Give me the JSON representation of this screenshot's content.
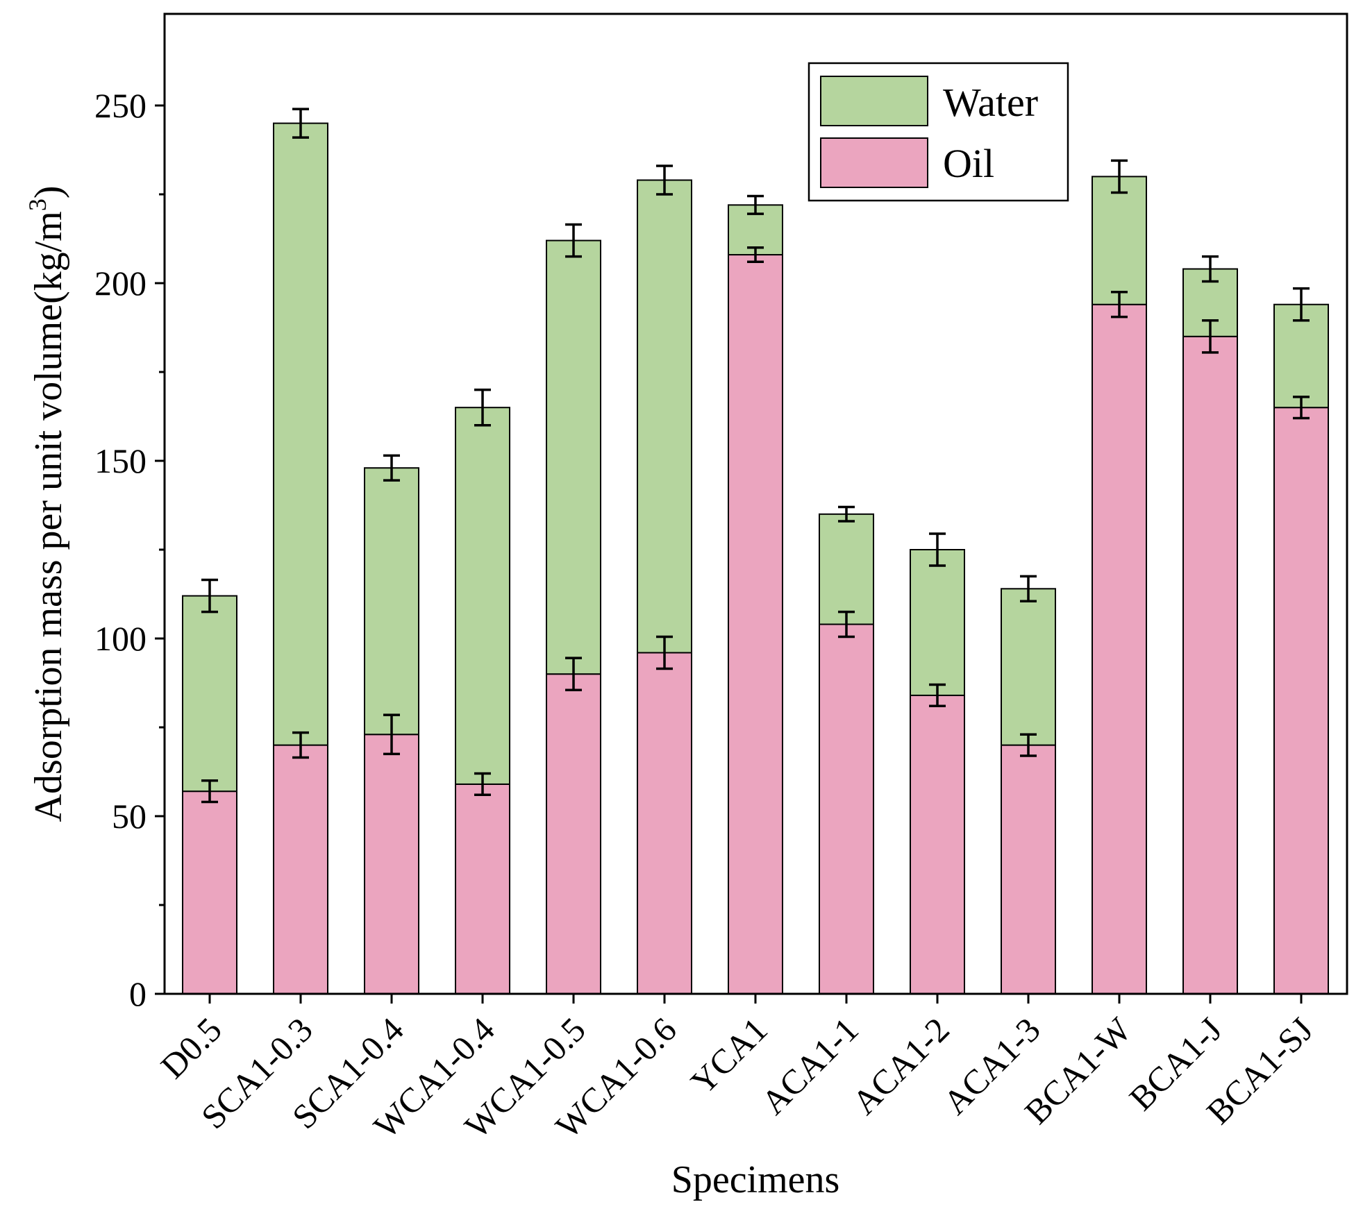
{
  "chart_data": {
    "type": "bar",
    "stacked": true,
    "title": "",
    "xlabel": "Specimens",
    "ylabel": "Adsorption mass per unit volume(kg/m",
    "ylabel_superscript": "3",
    "ylabel_suffix": ")",
    "ylim": [
      0,
      275
    ],
    "yticks": [
      0,
      50,
      100,
      150,
      200,
      250
    ],
    "grid": false,
    "legend_position": "top-center",
    "categories": [
      "D0.5",
      "SCA1-0.3",
      "SCA1-0.4",
      "WCA1-0.4",
      "WCA1-0.5",
      "WCA1-0.6",
      "YCA1",
      "ACA1-1",
      "ACA1-2",
      "ACA1-3",
      "BCA1-W",
      "BCA1-J",
      "BCA1-SJ"
    ],
    "series": [
      {
        "name": "Oil",
        "color": "#eba5bf",
        "values": [
          57,
          70,
          73,
          59,
          90,
          96,
          208,
          104,
          84,
          70,
          194,
          185,
          165
        ],
        "errors": [
          3,
          3.5,
          5.5,
          3,
          4.5,
          4.5,
          2,
          3.5,
          3,
          3,
          3.5,
          4.5,
          3
        ]
      },
      {
        "name": "Water",
        "color": "#b5d59e",
        "totals": [
          112,
          245,
          148,
          165,
          212,
          229,
          222,
          135,
          125,
          114,
          230,
          204,
          194
        ],
        "errors": [
          4.5,
          4,
          3.5,
          5,
          4.5,
          4,
          2.5,
          2,
          4.5,
          3.5,
          4.5,
          3.5,
          4.5
        ]
      }
    ],
    "legend": [
      {
        "label": "Water",
        "color": "#b5d59e"
      },
      {
        "label": "Oil",
        "color": "#eba5bf"
      }
    ]
  }
}
